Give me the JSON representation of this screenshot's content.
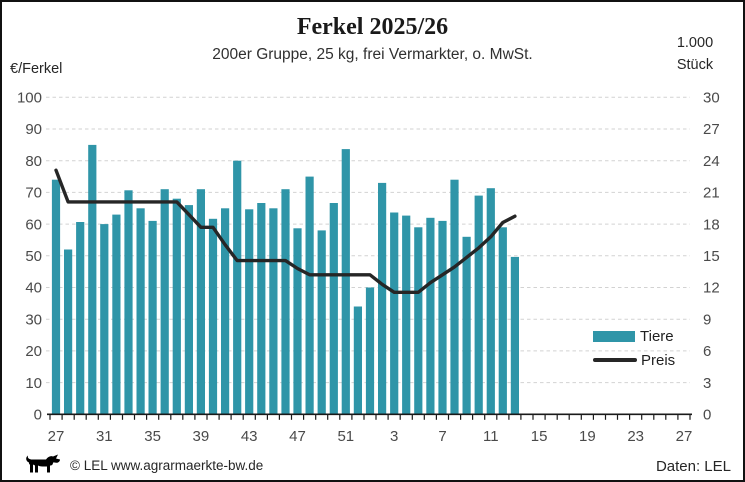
{
  "chart_data": {
    "type": "combo",
    "title": "Ferkel 2025/26",
    "subtitle": "200er Gruppe, 25 kg, frei Vermarkter, o. MwSt.",
    "x_slots": 53,
    "x_tick_labels": [
      "27",
      "31",
      "35",
      "39",
      "43",
      "47",
      "51",
      "3",
      "7",
      "11",
      "15",
      "19",
      "23",
      "27"
    ],
    "x_tick_slots": [
      0,
      4,
      8,
      12,
      16,
      20,
      24,
      28,
      32,
      36,
      40,
      44,
      48,
      52
    ],
    "categories": [
      "27",
      "28",
      "29",
      "30",
      "31",
      "32",
      "33",
      "34",
      "35",
      "36",
      "37",
      "38",
      "39",
      "40",
      "41",
      "42",
      "43",
      "44",
      "45",
      "46",
      "47",
      "48",
      "49",
      "50",
      "51",
      "52",
      "1",
      "2",
      "3",
      "4",
      "5",
      "6",
      "7",
      "8",
      "9",
      "10",
      "11",
      "12",
      "13"
    ],
    "series": [
      {
        "name": "Tiere",
        "type": "bar",
        "axis": "right",
        "values": [
          22.2,
          15.6,
          18.2,
          25.5,
          18,
          18.9,
          21.2,
          19.5,
          18.3,
          21.3,
          20.4,
          19.8,
          21.3,
          18.5,
          19.5,
          24,
          19.4,
          20,
          19.5,
          21.3,
          17.6,
          22.5,
          17.4,
          20,
          25.1,
          10.2,
          12,
          21.9,
          19.1,
          18.8,
          17.7,
          18.6,
          18.3,
          22.2,
          16.8,
          20.7,
          21.4,
          17.7,
          14.9
        ]
      },
      {
        "name": "Preis",
        "type": "line",
        "axis": "left",
        "values": [
          77,
          67,
          67,
          67,
          67,
          67,
          67,
          67,
          67,
          67,
          67,
          63,
          59,
          59,
          53.5,
          48.5,
          48.5,
          48.5,
          48.5,
          48.5,
          46,
          44,
          44,
          44,
          44,
          44,
          44,
          41,
          38.5,
          38.5,
          38.5,
          41.5,
          44,
          46.5,
          49.5,
          52.5,
          56,
          60.5,
          62.5
        ]
      }
    ],
    "axes": {
      "left": {
        "label": "€/Ferkel",
        "min": 0,
        "max": 100,
        "step": 10
      },
      "right": {
        "label": "1.000 Stück",
        "unit_lines": [
          "1.000",
          "Stück"
        ],
        "min": 0,
        "max": 30,
        "step": 3
      }
    },
    "grid": true,
    "legend_position": "inside-right"
  },
  "colors": {
    "bar": "#2f95a8",
    "line": "#262626",
    "grid": "#d2d2d2",
    "axis": "#1a1a1a",
    "tick_text": "#4a4a4a"
  },
  "footer": {
    "copyright": "© LEL www.agrarmaerkte-bw.de",
    "source": "Daten: LEL",
    "logo": "bw-lion-icon"
  }
}
